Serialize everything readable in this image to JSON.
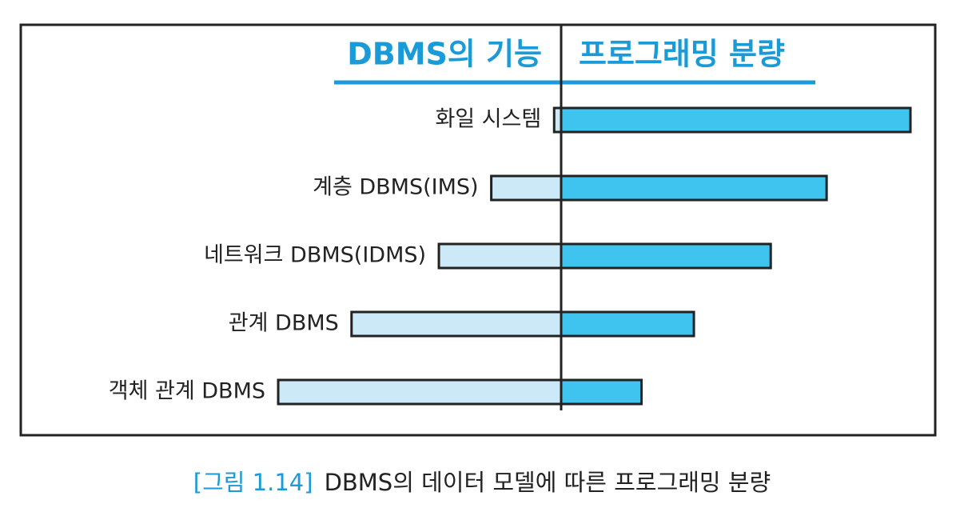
{
  "chart_data": {
    "type": "diverging-bar",
    "figure_label": "[그림 1.14]",
    "caption": "DBMS의 데이터 모델에 따른 프로그래밍 분량",
    "categories": [
      "화일 시스템",
      "계층 DBMS(IMS)",
      "네트워크 DBMS(IDMS)",
      "관계 DBMS",
      "객체 관계 DBMS"
    ],
    "series": [
      {
        "name": "DBMS의 기능",
        "color": "#cce9f8",
        "side": "left",
        "values": [
          2,
          20,
          35,
          60,
          81
        ]
      },
      {
        "name": "프로그래밍 분량",
        "color": "#3fc4ef",
        "side": "right",
        "values": [
          100,
          76,
          60,
          38,
          23
        ]
      }
    ]
  }
}
